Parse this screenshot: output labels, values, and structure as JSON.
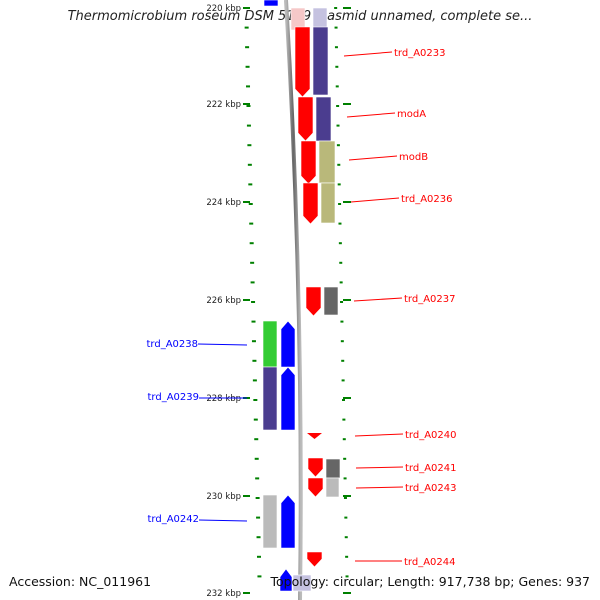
{
  "title": "Thermomicrobium roseum DSM 5159 plasmid unnamed, complete se...",
  "footer": {
    "accession": "Accession: NC_011961",
    "topology": "Topology: circular; Length: 917,738 bp; Genes: 937"
  },
  "colors": {
    "forward": "#ff0000",
    "reverse": "#0000ff",
    "backbone": "#888888",
    "tick": "#008000",
    "cog_purple": "#4b3d8f",
    "cog_khaki": "#b9b87a",
    "cog_green": "#33cc33",
    "cog_darkgray": "#666666",
    "cog_lightgray": "#bbbbbb"
  },
  "scale_labels": [
    "220 kbp",
    "222 kbp",
    "224 kbp",
    "226 kbp",
    "228 kbp",
    "230 kbp",
    "232 kbp"
  ],
  "features": [
    {
      "label": "trd_A0233",
      "strand": "forward",
      "cog_color": "cog_purple"
    },
    {
      "label": "modA",
      "strand": "forward",
      "cog_color": "cog_purple"
    },
    {
      "label": "modB",
      "strand": "forward",
      "cog_color": "cog_khaki"
    },
    {
      "label": "trd_A0236",
      "strand": "forward",
      "cog_color": "cog_khaki"
    },
    {
      "label": "trd_A0237",
      "strand": "forward",
      "cog_color": "cog_darkgray"
    },
    {
      "label": "trd_A0238",
      "strand": "reverse",
      "cog_color": "cog_green"
    },
    {
      "label": "trd_A0239",
      "strand": "reverse",
      "cog_color": "cog_purple"
    },
    {
      "label": "trd_A0240",
      "strand": "forward",
      "cog_color": ""
    },
    {
      "label": "trd_A0241",
      "strand": "forward",
      "cog_color": "cog_darkgray"
    },
    {
      "label": "trd_A0243",
      "strand": "forward",
      "cog_color": "cog_lightgray"
    },
    {
      "label": "trd_A0242",
      "strand": "reverse",
      "cog_color": "cog_lightgray"
    },
    {
      "label": "trd_A0244",
      "strand": "forward",
      "cog_color": ""
    }
  ]
}
